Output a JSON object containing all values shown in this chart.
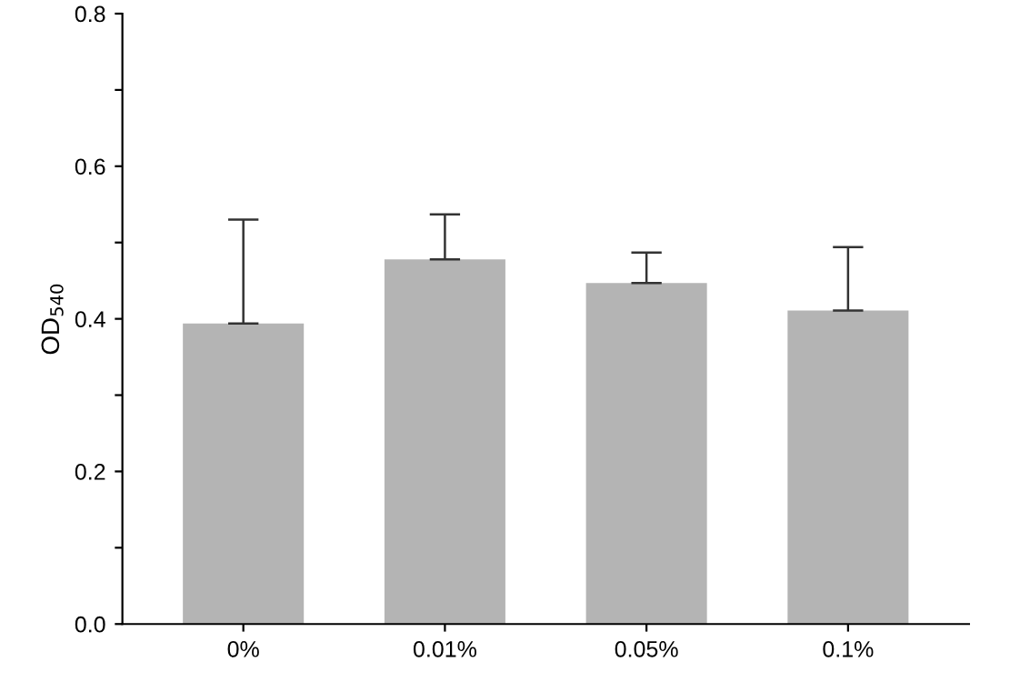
{
  "chart_data": {
    "type": "bar",
    "ylabel": "OD$_{540}$",
    "categories": [
      "0%",
      "0.01%",
      "0.05%",
      "0.1%"
    ],
    "values": [
      0.394,
      0.478,
      0.447,
      0.411
    ],
    "errors": [
      [
        0.394,
        0.53
      ],
      [
        0.478,
        0.537
      ],
      [
        0.447,
        0.487
      ],
      [
        0.411,
        0.494
      ]
    ],
    "color": "#b4b4b4",
    "ylim": [
      0,
      0.8
    ],
    "yticks": [
      {
        "value": 0,
        "label": "0.0"
      },
      {
        "value": 0.1,
        "label": null
      },
      0.2,
      {
        "value": 0.3,
        "label": null
      },
      0.4,
      {
        "value": 0.5,
        "label": null
      },
      0.6,
      {
        "value": 0.7,
        "label": null
      },
      0.8
    ],
    "grid": false,
    "legend": false
  }
}
